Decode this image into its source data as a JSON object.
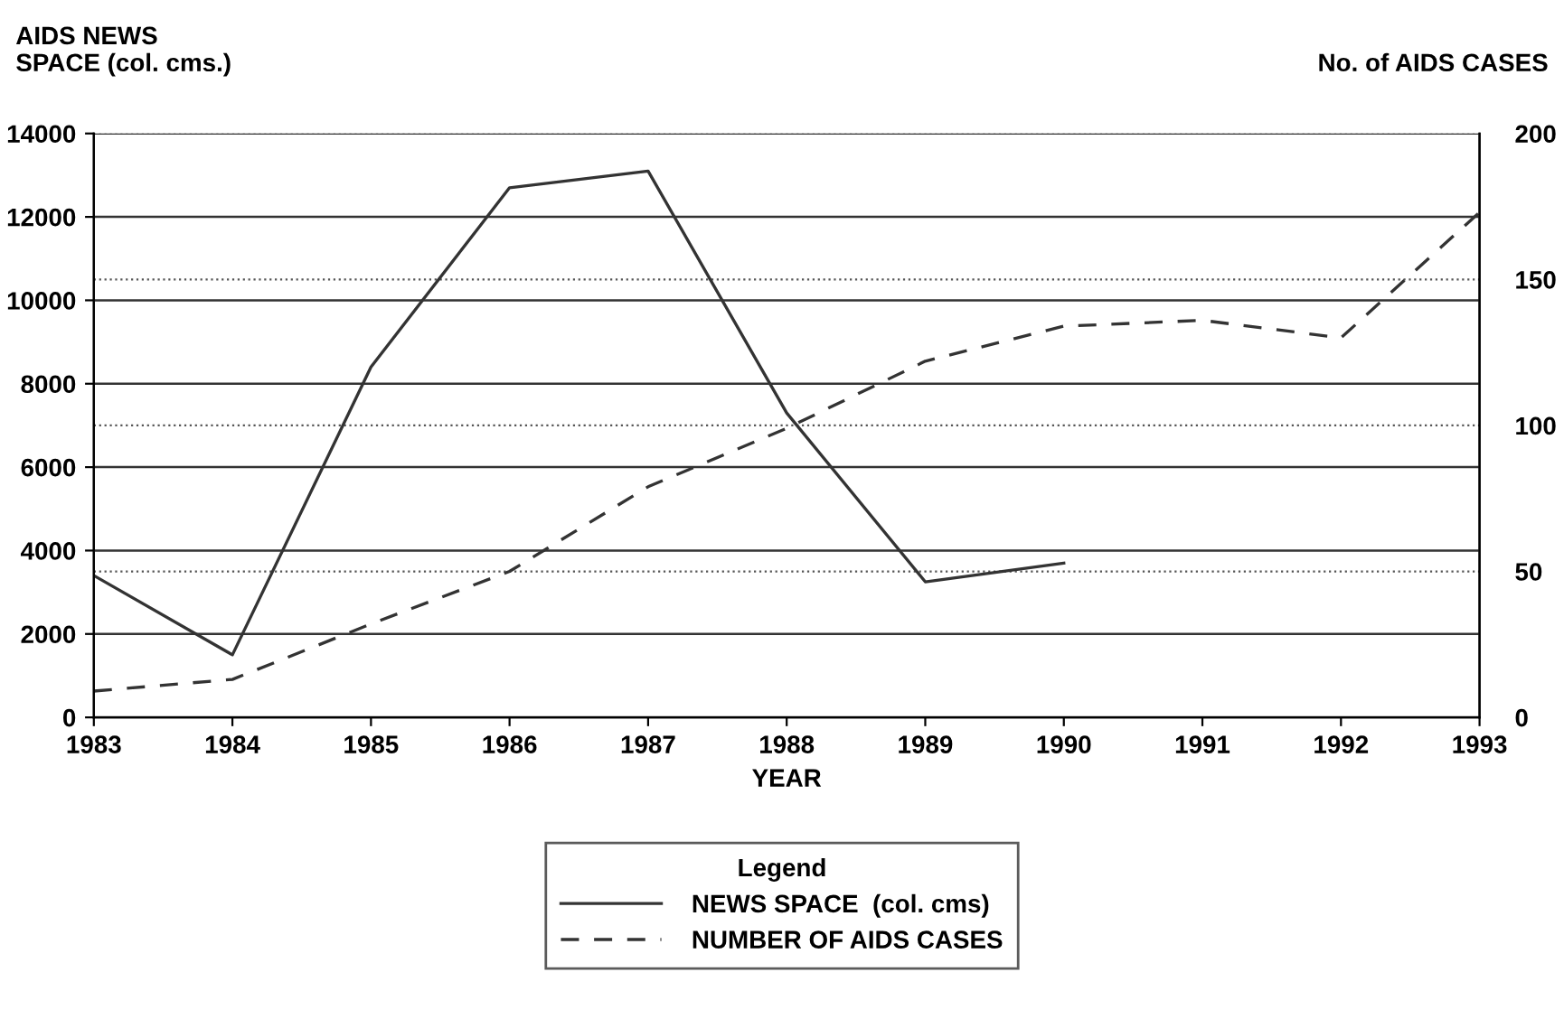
{
  "chart_data": {
    "type": "line",
    "xlabel": "YEAR",
    "ylabel": "AIDS NEWS\nSPACE (col. cms.)",
    "y2label": "No. of AIDS CASES",
    "legend_title": "Legend",
    "x": [
      1983,
      1984,
      1985,
      1986,
      1987,
      1988,
      1989,
      1990,
      1991,
      1992,
      1993
    ],
    "xlim": [
      1983,
      1993
    ],
    "xticks": [
      1983,
      1984,
      1985,
      1986,
      1987,
      1988,
      1989,
      1990,
      1991,
      1992,
      1993
    ],
    "ylim": [
      0,
      14000
    ],
    "yticks": [
      0,
      2000,
      4000,
      6000,
      8000,
      10000,
      12000,
      14000
    ],
    "y2lim": [
      0,
      200
    ],
    "y2ticks": [
      0,
      50,
      100,
      150,
      200
    ],
    "grid": "y",
    "legend": "bottom",
    "marker": "none",
    "series": [
      {
        "name": "NEWS SPACE  (col. cms)",
        "color": "#333333",
        "line_style": "solid",
        "values": [
          3400,
          1500,
          8400,
          12700,
          13100,
          7300,
          3250,
          3700,
          null,
          null,
          null
        ]
      },
      {
        "name": "NUMBER OF AIDS CASES",
        "color": "#333333",
        "line_style": "dashed",
        "axis": "y2",
        "values": [
          9,
          13,
          32,
          50,
          79,
          99,
          122,
          134,
          136,
          130,
          173
        ]
      }
    ]
  }
}
